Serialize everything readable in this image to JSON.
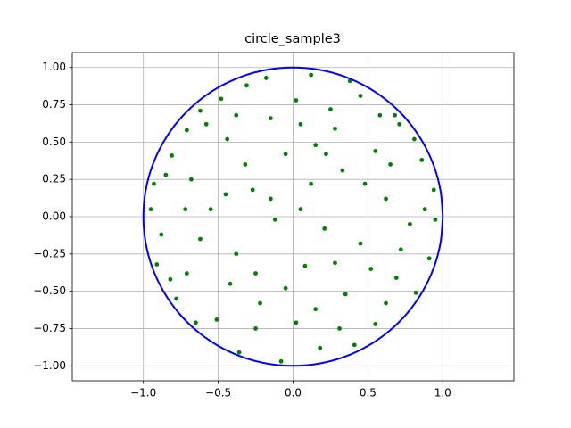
{
  "chart_data": {
    "type": "scatter",
    "title": "circle_sample3",
    "xlim": [
      -1.475,
      1.475
    ],
    "ylim": [
      -1.1,
      1.1
    ],
    "xticks": [
      {
        "value": -1,
        "label": "−1.0"
      },
      {
        "value": -0.5,
        "label": "−0.5"
      },
      {
        "value": 0,
        "label": "0.0"
      },
      {
        "value": 0.5,
        "label": "0.5"
      },
      {
        "value": 1,
        "label": "1.0"
      }
    ],
    "yticks": [
      {
        "value": -1,
        "label": "−1.00"
      },
      {
        "value": -0.75,
        "label": "−0.75"
      },
      {
        "value": -0.5,
        "label": "−0.50"
      },
      {
        "value": -0.25,
        "label": "−0.25"
      },
      {
        "value": 0,
        "label": "0.00"
      },
      {
        "value": 0.25,
        "label": "0.25"
      },
      {
        "value": 0.5,
        "label": "0.50"
      },
      {
        "value": 0.75,
        "label": "0.75"
      },
      {
        "value": 1,
        "label": "1.00"
      }
    ],
    "grid": true,
    "series": [
      {
        "type": "line",
        "color": "#0000ff",
        "x": [
          1,
          0.985,
          0.94,
          0.866,
          0.766,
          0.643,
          0.5,
          0.342,
          0.174,
          0,
          -0.174,
          -0.342,
          -0.5,
          -0.643,
          -0.766,
          -0.866,
          -0.94,
          -0.985,
          -1,
          -0.985,
          -0.94,
          -0.866,
          -0.766,
          -0.643,
          -0.5,
          -0.342,
          -0.174,
          0,
          0.174,
          0.342,
          0.5,
          0.643,
          0.766,
          0.866,
          0.94,
          0.985,
          1
        ],
        "values": [
          0,
          0.174,
          0.342,
          0.5,
          0.643,
          0.766,
          0.866,
          0.94,
          0.985,
          1,
          0.985,
          0.94,
          0.866,
          0.766,
          0.643,
          0.5,
          0.342,
          0.174,
          0,
          -0.174,
          -0.342,
          -0.5,
          -0.643,
          -0.766,
          -0.866,
          -0.94,
          -0.985,
          -1,
          -0.985,
          -0.94,
          -0.866,
          -0.766,
          -0.643,
          -0.5,
          -0.342,
          -0.174,
          0
        ]
      },
      {
        "type": "scatter",
        "color": "#008000",
        "x": [
          0.12,
          -0.31,
          0.45,
          -0.62,
          0.71,
          0.02,
          -0.15,
          0.28,
          -0.44,
          0.55,
          0.86,
          -0.81,
          -0.93,
          0.94,
          -0.68,
          0.33,
          -0.05,
          0.12,
          -0.27,
          0.62,
          -0.55,
          0.78,
          -0.88,
          0.21,
          -0.12,
          0.45,
          -0.38,
          0.08,
          -0.71,
          0.69,
          0.91,
          -0.95,
          0.35,
          -0.22,
          0.02,
          -0.51,
          0.55,
          -0.78,
          0.82,
          0.18,
          -0.36,
          0.41,
          -0.08,
          0.25,
          -0.48,
          0.58,
          -0.71,
          0.15,
          -0.32,
          0.48,
          -0.15,
          0.95,
          -0.62,
          0.28,
          -0.05,
          0.62,
          -0.42,
          0.15,
          -0.65,
          0.72,
          -0.85,
          0.38,
          -0.18,
          0.81,
          -0.58,
          0.05,
          -0.25,
          0.31,
          -0.91,
          0.88,
          0.65,
          -0.45,
          0.22,
          -0.72,
          0.52,
          -0.25,
          0.68,
          -0.82,
          0.05,
          -0.38
        ],
        "values": [
          0.95,
          0.88,
          0.81,
          0.71,
          0.62,
          0.78,
          0.66,
          0.59,
          0.52,
          0.44,
          0.38,
          0.41,
          0.22,
          0.18,
          0.25,
          0.31,
          0.42,
          0.22,
          0.18,
          0.12,
          0.05,
          -0.05,
          -0.12,
          -0.08,
          -0.02,
          -0.18,
          -0.25,
          -0.33,
          -0.38,
          -0.41,
          -0.28,
          0.05,
          -0.52,
          -0.58,
          -0.71,
          -0.69,
          -0.72,
          -0.55,
          -0.51,
          -0.88,
          -0.91,
          -0.86,
          -0.97,
          0.72,
          0.79,
          0.68,
          0.58,
          0.48,
          0.35,
          0.22,
          0.12,
          -0.02,
          -0.15,
          -0.31,
          -0.48,
          -0.58,
          -0.45,
          -0.62,
          -0.71,
          -0.22,
          0.28,
          0.91,
          0.93,
          0.52,
          0.62,
          0.05,
          -0.75,
          -0.75,
          -0.32,
          0.05,
          0.35,
          0.15,
          0.42,
          0.05,
          -0.35,
          -0.38,
          0.68,
          -0.42,
          0.62,
          0.68
        ]
      }
    ]
  }
}
